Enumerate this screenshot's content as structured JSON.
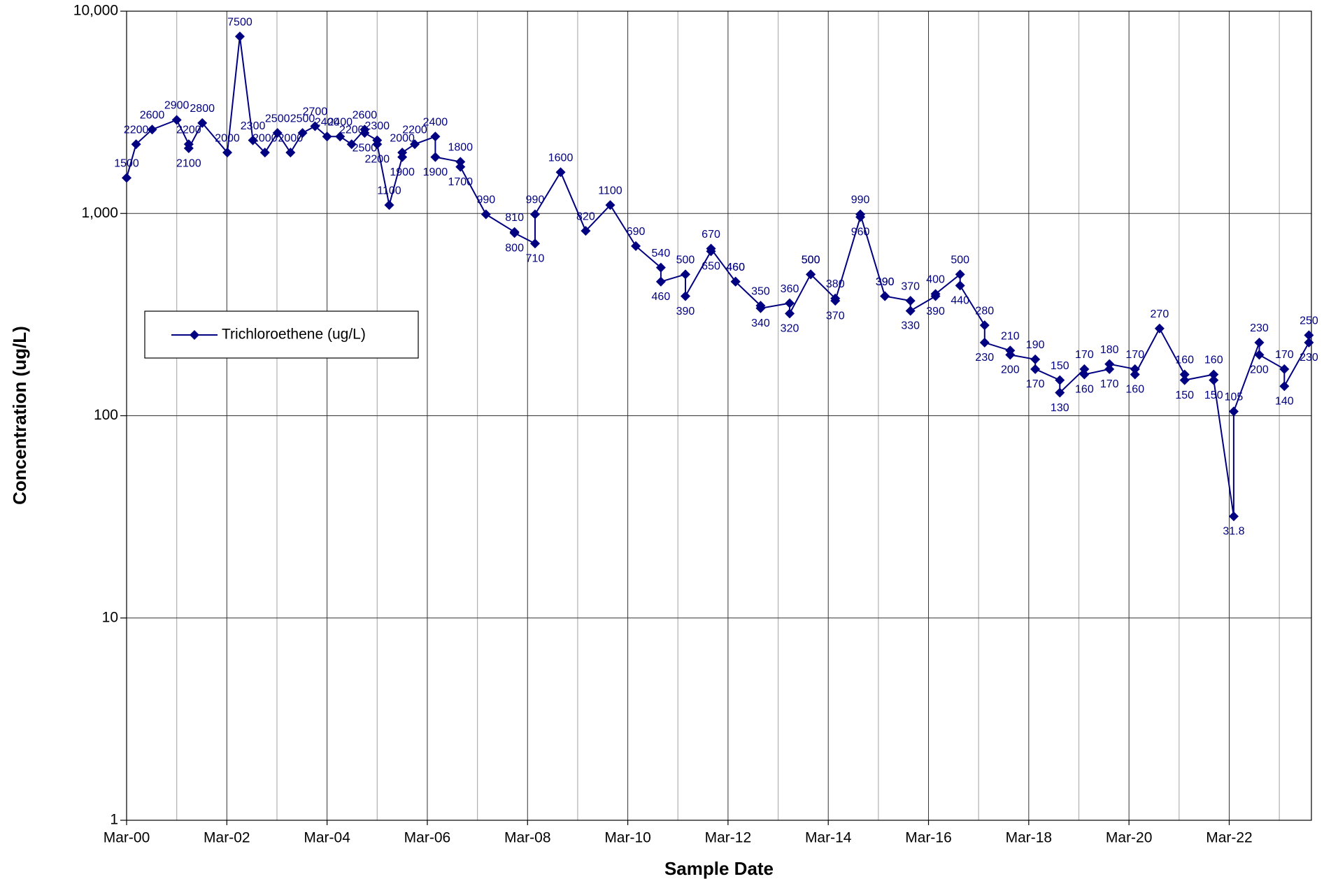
{
  "chart_data": {
    "type": "line",
    "xlabel": "Sample Date",
    "ylabel": "Concentration (ug/L)",
    "yscale": "log",
    "grid": true,
    "legend_loc": "left",
    "xlim": [
      2000.17,
      2023.81
    ],
    "xticks": [
      {
        "value": 2000.17,
        "label": "Mar-00"
      },
      {
        "value": 2002.17,
        "label": "Mar-02"
      },
      {
        "value": 2004.17,
        "label": "Mar-04"
      },
      {
        "value": 2006.17,
        "label": "Mar-06"
      },
      {
        "value": 2008.17,
        "label": "Mar-08"
      },
      {
        "value": 2010.17,
        "label": "Mar-10"
      },
      {
        "value": 2012.17,
        "label": "Mar-12"
      },
      {
        "value": 2014.17,
        "label": "Mar-14"
      },
      {
        "value": 2016.17,
        "label": "Mar-16"
      },
      {
        "value": 2018.17,
        "label": "Mar-18"
      },
      {
        "value": 2020.17,
        "label": "Mar-20"
      },
      {
        "value": 2022.17,
        "label": "Mar-22"
      }
    ],
    "xminor_grid": [
      2001.17,
      2003.17,
      2005.17,
      2007.17,
      2009.17,
      2011.17,
      2013.17,
      2015.17,
      2017.17,
      2019.17,
      2021.17,
      2023.17
    ],
    "ylim": [
      1,
      10000
    ],
    "yticks": [
      1,
      10,
      100,
      {
        "value": 1000,
        "label": "1,000"
      },
      {
        "value": 10000,
        "label": "10,000"
      }
    ],
    "x": [
      2000.17,
      2000.36,
      2000.68,
      2001.17,
      2001.41,
      2001.41,
      2001.68,
      2002.18,
      2002.43,
      2002.69,
      2002.93,
      2003.18,
      2003.44,
      2003.68,
      2003.93,
      2004.17,
      2004.43,
      2004.66,
      2004.92,
      2004.92,
      2005.17,
      2005.17,
      2005.41,
      2005.67,
      2005.67,
      2005.92,
      2006.33,
      2006.33,
      2006.83,
      2006.83,
      2007.34,
      2007.91,
      2007.91,
      2008.32,
      2008.32,
      2008.83,
      2009.33,
      2009.82,
      2010.33,
      2010.83,
      2010.83,
      2011.32,
      2011.32,
      2011.83,
      2011.83,
      2012.32,
      2012.32,
      2012.82,
      2012.82,
      2013.4,
      2013.4,
      2013.82,
      2013.82,
      2014.31,
      2014.31,
      2014.81,
      2014.81,
      2015.3,
      2015.3,
      2015.81,
      2015.81,
      2016.31,
      2016.31,
      2016.8,
      2016.8,
      2017.29,
      2017.29,
      2017.8,
      2017.8,
      2018.3,
      2018.3,
      2018.79,
      2018.79,
      2019.28,
      2019.28,
      2019.78,
      2019.78,
      2020.29,
      2020.29,
      2020.78,
      2021.28,
      2021.28,
      2021.86,
      2021.86,
      2022.26,
      2022.26,
      2022.77,
      2022.77,
      2023.27,
      2023.27,
      2023.76,
      2023.76
    ],
    "series": [
      {
        "name": "Trichloroethene (ug/L)",
        "color": "#000080",
        "values": [
          1500,
          2200,
          2600,
          2900,
          2200,
          2100,
          2800,
          2000,
          7500,
          2300,
          2000,
          2500,
          2000,
          2500,
          2700,
          2400,
          2400,
          2200,
          2600,
          2500,
          2300,
          2200,
          1100,
          1900,
          2000,
          2200,
          2400,
          1900,
          1800,
          1700,
          990,
          810,
          800,
          710,
          990,
          1600,
          820,
          1100,
          690,
          540,
          460,
          500,
          390,
          650,
          670,
          460,
          460,
          350,
          340,
          360,
          320,
          500,
          500,
          380,
          370,
          960,
          990,
          390,
          390,
          370,
          330,
          390,
          400,
          500,
          440,
          280,
          230,
          210,
          200,
          190,
          170,
          150,
          130,
          170,
          160,
          170,
          180,
          170,
          160,
          270,
          160,
          150,
          160,
          150,
          31.8,
          105,
          230,
          200,
          170,
          140,
          230,
          250
        ]
      }
    ]
  }
}
